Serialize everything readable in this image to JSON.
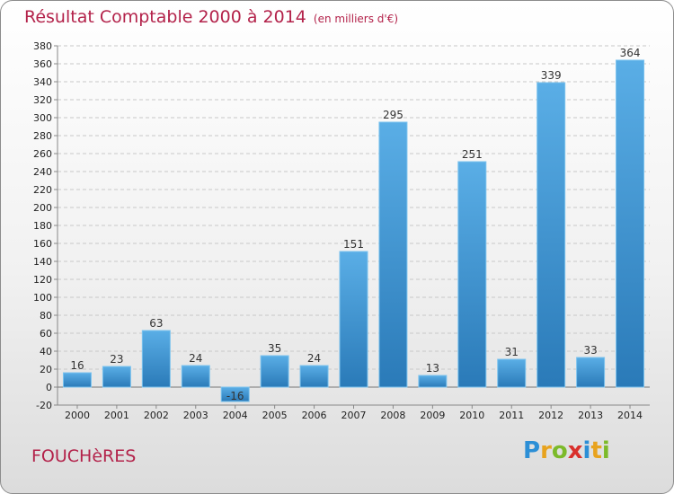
{
  "header": {
    "title": "Résultat Comptable 2000 à 2014",
    "unit": "(en milliers d'€)"
  },
  "footer": {
    "town": "FOUCHèRES",
    "logo_letters": [
      {
        "ch": "P",
        "color": "#2c8fd6"
      },
      {
        "ch": "r",
        "color": "#e8a31e"
      },
      {
        "ch": "o",
        "color": "#7cba2a"
      },
      {
        "ch": "x",
        "color": "#d9302c"
      },
      {
        "ch": "i",
        "color": "#2c8fd6"
      },
      {
        "ch": "t",
        "color": "#e8a31e"
      },
      {
        "ch": "i",
        "color": "#7cba2a"
      }
    ]
  },
  "chart_data": {
    "type": "bar",
    "categories": [
      "2000",
      "2001",
      "2002",
      "2003",
      "2004",
      "2005",
      "2006",
      "2007",
      "2008",
      "2009",
      "2010",
      "2011",
      "2012",
      "2013",
      "2014"
    ],
    "values": [
      16,
      23,
      63,
      24,
      -16,
      35,
      24,
      151,
      295,
      13,
      251,
      31,
      339,
      33,
      364
    ],
    "ylim": [
      -20,
      380
    ],
    "ytick_step": 20,
    "grid": true,
    "bar_color_light": "#5aaee6",
    "bar_color_dark": "#2a7ab8",
    "title_color": "#b3224a"
  }
}
